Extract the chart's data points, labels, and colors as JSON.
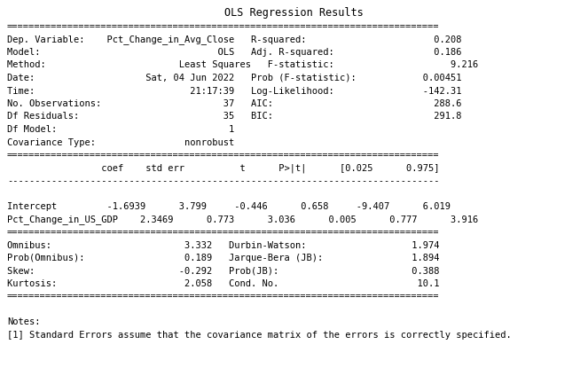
{
  "title": "OLS Regression Results",
  "bg_color": "#ffffff",
  "text_color": "#000000",
  "font_family": "DejaVu Sans Mono",
  "font_size": 7.5,
  "title_font_size": 8.5,
  "figsize": [
    6.63,
    4.15
  ],
  "dpi": 100,
  "lines": [
    "==============================================================================",
    "Dep. Variable:    Pct_Change_in_Avg_Close   R-squared:                       0.208",
    "Model:                                OLS   Adj. R-squared:                  0.186",
    "Method:                        Least Squares   F-statistic:                     9.216",
    "Date:                    Sat, 04 Jun 2022   Prob (F-statistic):            0.00451",
    "Time:                            21:17:39   Log-Likelihood:                -142.31",
    "No. Observations:                      37   AIC:                             288.6",
    "Df Residuals:                          35   BIC:                             291.8",
    "Df Model:                               1",
    "Covariance Type:                nonrobust",
    "==============================================================================",
    "                 coef    std err          t      P>|t|      [0.025      0.975]",
    "------------------------------------------------------------------------------",
    "",
    "Intercept         -1.6939      3.799     -0.446      0.658     -9.407      6.019",
    "Pct_Change_in_US_GDP    2.3469      0.773      3.036      0.005      0.777      3.916",
    "==============================================================================",
    "Omnibus:                        3.332   Durbin-Watson:                   1.974",
    "Prob(Omnibus):                  0.189   Jarque-Bera (JB):                1.894",
    "Skew:                          -0.292   Prob(JB):                        0.388",
    "Kurtosis:                       2.058   Cond. No.                         10.1",
    "==============================================================================",
    "",
    "Notes:",
    "[1] Standard Errors assume that the covariance matrix of the errors is correctly specified."
  ]
}
